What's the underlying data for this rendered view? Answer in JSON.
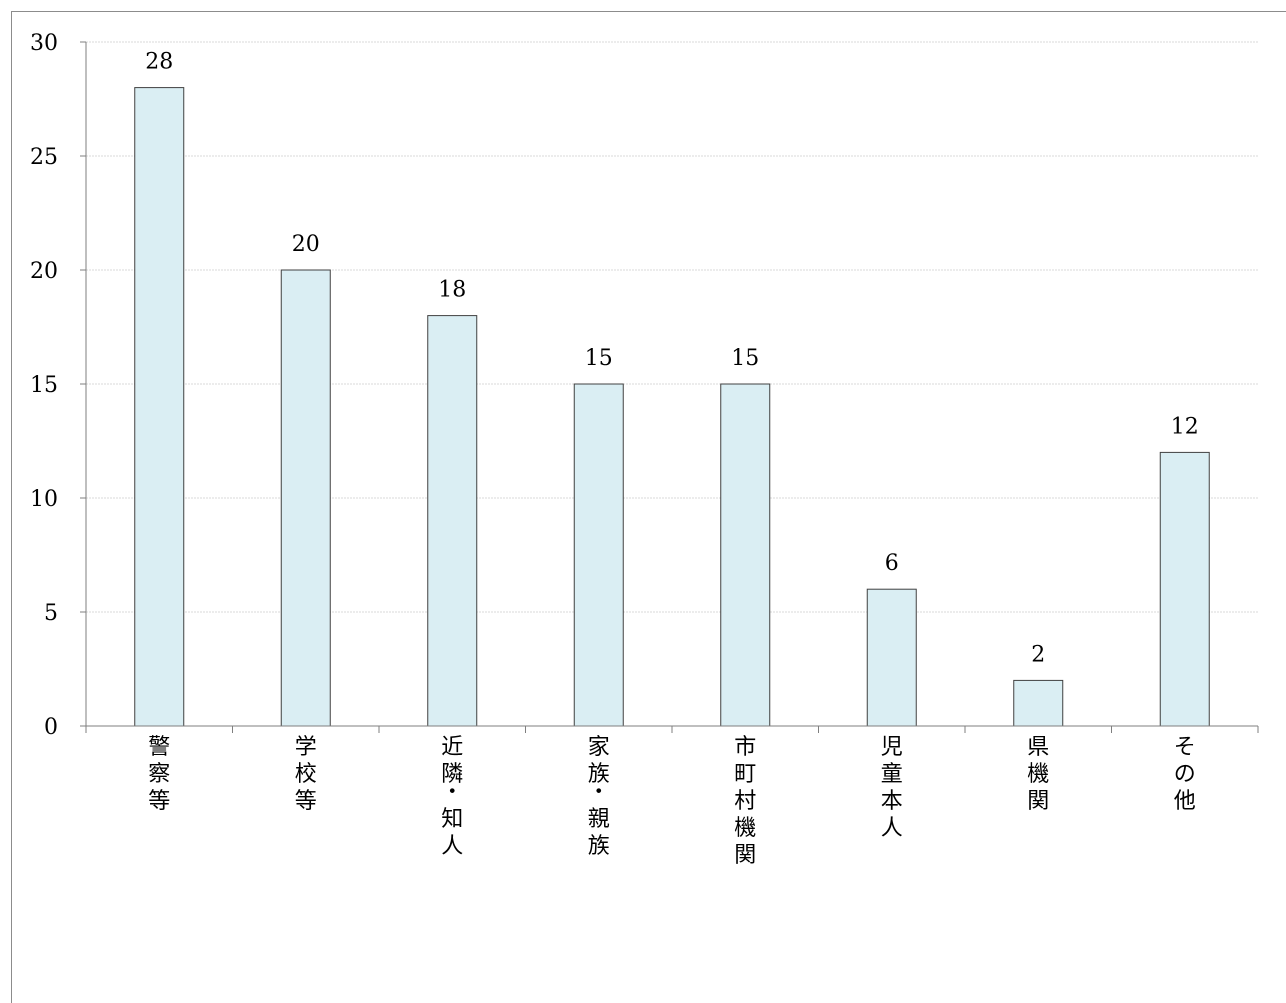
{
  "chart_data": {
    "type": "bar",
    "categories": [
      "警察等",
      "学校等",
      "近隣・知人",
      "家族・親族",
      "市町村機関",
      "児童本人",
      "県機関",
      "その他"
    ],
    "values": [
      28,
      20,
      18,
      15,
      15,
      6,
      2,
      12
    ],
    "data_labels": [
      "28",
      "20",
      "18",
      "15",
      "15",
      "6",
      "2",
      "12"
    ],
    "ylim": [
      0,
      30
    ],
    "yticks": [
      0,
      5,
      10,
      15,
      20,
      25,
      30
    ],
    "title": "",
    "xlabel": "",
    "ylabel": "",
    "grid": true,
    "bar_color": "#daeef3",
    "bar_edge_color": "#404040",
    "grid_color": "#d9d9d9"
  }
}
